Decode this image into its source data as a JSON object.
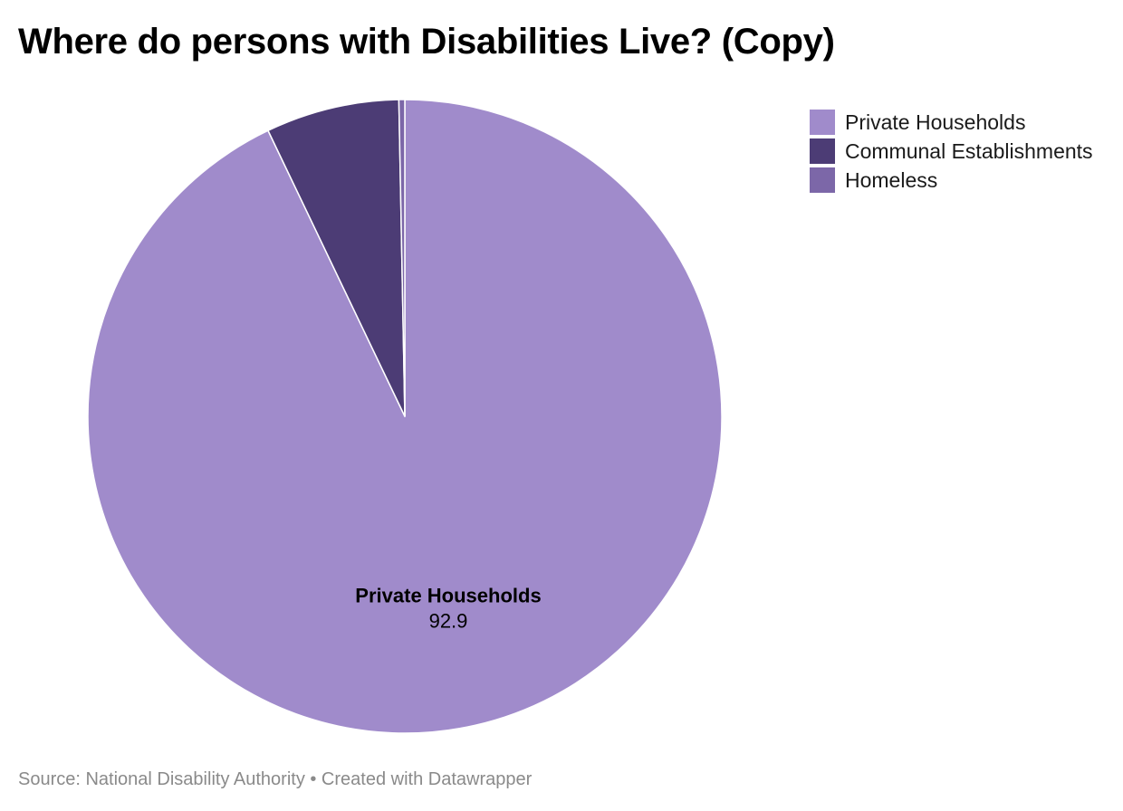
{
  "chart_data": {
    "type": "pie",
    "title": "Where do persons with Disabilities Live? (Copy)",
    "slices": [
      {
        "label": "Private Households",
        "value": 92.9,
        "color": "#a08bcb"
      },
      {
        "label": "Communal Establishments",
        "value": 6.8,
        "color": "#4c3c75"
      },
      {
        "label": "Homeless",
        "value": 0.3,
        "color": "#7c67a8"
      }
    ],
    "data_labels": [
      {
        "name": "Private Households",
        "value": "92.9"
      }
    ],
    "legend_position": "top-right",
    "source": "Source: National Disability Authority • Created with Datawrapper"
  }
}
